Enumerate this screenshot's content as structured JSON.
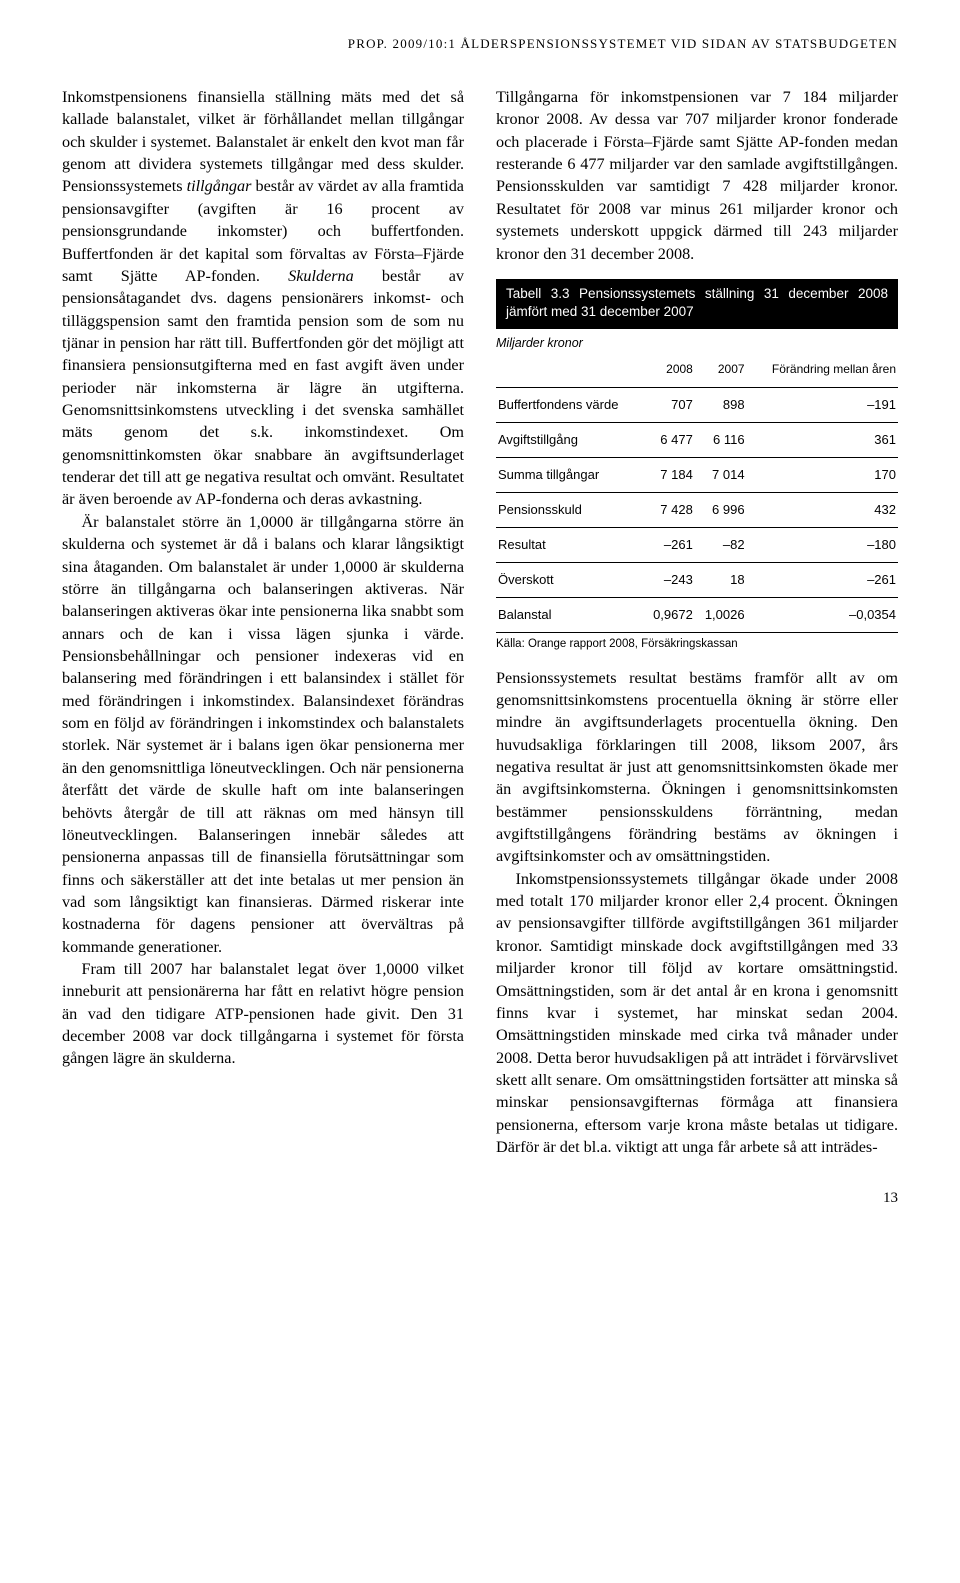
{
  "running_head": "PROP. 2009/10:1 ÅLDERSPENSIONSSYSTEMET VID SIDAN AV STATSBUDGETEN",
  "left": {
    "p1a": "Inkomstpensionens finansiella ställning mäts med det så kallade balanstalet, vilket är förhållandet mellan tillgångar och skulder i systemet. Balanstalet är enkelt den kvot man får genom att dividera systemets tillgångar med dess skulder. Pensionssystemets ",
    "p1_i1": "tillgångar",
    "p1b": " består av värdet av alla framtida pensionsavgifter (avgiften är 16 procent av pensionsgrundande inkomster) och buffertfonden. Buffertfonden är det kapital som förvaltas av Första–Fjärde samt Sjätte AP-fonden. ",
    "p1_i2": "Skulderna",
    "p1c": " består av pensionsåtagandet dvs. dagens pensionärers inkomst- och tilläggspension samt den framtida pension som de som nu tjänar in pension har rätt till. Buffertfonden gör det möjligt att finansiera pensionsutgifterna med en fast avgift även under perioder när inkomsterna är lägre än utgifterna. Genomsnittsinkomstens utveckling i det svenska samhället mäts genom det s.k. inkomstindexet. Om genomsnittinkomsten ökar snabbare än avgiftsunderlaget tenderar det till att ge negativa resultat och omvänt. Resultatet är även beroende av AP-fonderna och deras avkastning.",
    "p2": "Är balanstalet större än 1,0000 är tillgångarna större än skulderna och systemet är då i balans och klarar långsiktigt sina åtaganden. Om balanstalet är under 1,0000 är skulderna större än tillgångarna och balanseringen aktiveras. När balanseringen aktiveras ökar inte pensionerna lika snabbt som annars och de kan i vissa lägen sjunka i värde. Pensionsbehållningar och pensioner indexeras vid en balansering med förändringen i ett balansindex i stället för med förändringen i inkomstindex. Balansindexet förändras som en följd av förändringen i inkomstindex och balanstalets storlek. När systemet är i balans igen ökar pensionerna mer än den genomsnittliga löneutvecklingen. Och när pensionerna återfått det värde de skulle haft om inte balanseringen behövts återgår de till att räknas om med hänsyn till löneutvecklingen. Balanseringen innebär således att pensionerna anpassas till de finansiella förutsättningar som finns och säkerställer att det inte betalas ut mer pension än vad som långsiktigt kan finansieras. Därmed riskerar inte kostnaderna för dagens pensioner att övervältras på kommande generationer.",
    "p3": "Fram till 2007 har balanstalet legat över 1,0000 vilket inneburit att pensionärerna har fått en relativt högre pension än vad den tidigare ATP-pensionen hade givit. Den 31 december 2008 var dock tillgångarna i systemet för första gången lägre än skulderna."
  },
  "right": {
    "p1": "Tillgångarna för inkomstpensionen var 7 184 miljarder kronor 2008. Av dessa var 707 miljarder kronor fonderade och placerade i Första–Fjärde samt Sjätte AP-fonden medan resterande 6 477 miljarder var den samlade avgiftstillgången. Pensionsskulden var samtidigt 7 428 miljarder kronor. Resultatet för 2008 var minus 261 miljarder kronor och systemets underskott uppgick därmed till 243 miljarder kronor den 31 december 2008.",
    "p2": "Pensionssystemets resultat bestäms framför allt av om genomsnittsinkomstens procentuella ökning är större eller mindre än avgiftsunderlagets procentuella ökning. Den huvudsakliga förklaringen till 2008, liksom 2007, års negativa resultat är just att genomsnittsinkomsten ökade mer än avgiftsinkomsterna. Ökningen i genomsnittsinkomsten bestämmer pensionsskuldens förräntning, medan avgiftstillgångens förändring bestäms av ökningen i avgiftsinkomster och av omsättningstiden.",
    "p3": "Inkomstpensionssystemets tillgångar ökade under 2008 med totalt 170 miljarder kronor eller 2,4 procent. Ökningen av pensionsavgifter tillförde avgiftstillgången 361 miljarder kronor. Samtidigt minskade dock avgiftstillgången med 33 miljarder kronor till följd av kortare omsättningstid. Omsättningstiden, som är det antal år en krona i genomsnitt finns kvar i systemet, har minskat sedan 2004. Omsättningstiden minskade med cirka två månader under 2008. Detta beror huvudsakligen på att inträdet i förvärvslivet skett allt senare. Om omsättningstiden fortsätter att minska så minskar pensionsavgifternas förmåga att finansiera pensionerna, eftersom varje krona måste betalas ut tidigare. Därför är det bl.a. viktigt att unga får arbete så att inträdes-"
  },
  "table": {
    "title": "Tabell 3.3 Pensionssystemets ställning 31 december 2008 jämfört med 31 december 2007",
    "unit": "Miljarder kronor",
    "headers": [
      "",
      "2008",
      "2007",
      "Förändring mellan åren"
    ],
    "rows": [
      [
        "Buffertfondens värde",
        "707",
        "898",
        "–191"
      ],
      [
        "Avgiftstillgång",
        "6 477",
        "6 116",
        "361"
      ],
      [
        "Summa tillgångar",
        "7 184",
        "7 014",
        "170"
      ],
      [
        "Pensionsskuld",
        "7 428",
        "6 996",
        "432"
      ],
      [
        "Resultat",
        "–261",
        "–82",
        "–180"
      ],
      [
        "Överskott",
        "–243",
        "18",
        "–261"
      ],
      [
        "Balanstal",
        "0,9672",
        "1,0026",
        "–0,0354"
      ]
    ],
    "source": "Källa: Orange rapport 2008, Försäkringskassan",
    "colors": {
      "header_bg": "#000000",
      "header_fg": "#ffffff"
    },
    "col_align": [
      "left",
      "right",
      "right",
      "right"
    ],
    "fontsize": 13
  },
  "page_number": "13"
}
